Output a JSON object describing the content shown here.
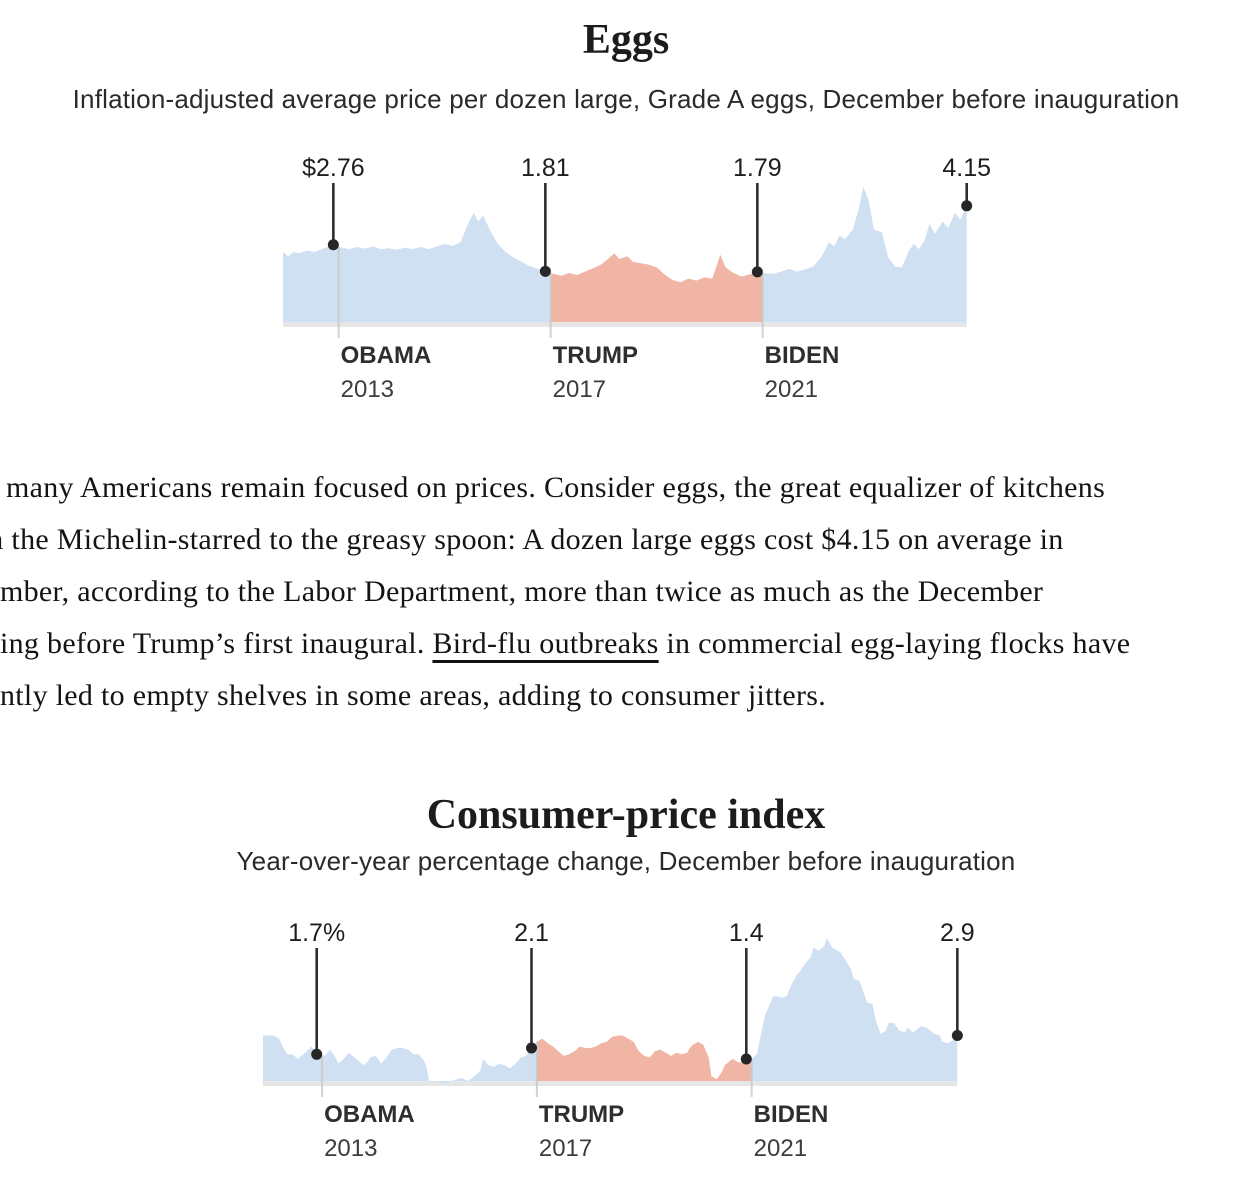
{
  "colors": {
    "area_blue": "#cfe0f2",
    "area_pink": "#f0b5a4",
    "baseline_strip": "#e6e6e6",
    "gridline": "#c9c9c9",
    "callout_line": "#2e2e2e",
    "dot": "#262626"
  },
  "chart_data": [
    {
      "type": "area",
      "title": "Eggs",
      "subtitle": "Inflation-adjusted average price per dozen large, Grade A eggs, December before inauguration",
      "unit": "dollars per dozen",
      "x_domain": [
        2012.0,
        2024.9
      ],
      "ylim": [
        0,
        5.2
      ],
      "grid": false,
      "segments": [
        {
          "president": "OBAMA",
          "color": "#cfe0f2",
          "from": 2012.0,
          "to": 2017.05
        },
        {
          "president": "TRUMP",
          "color": "#f0b5a4",
          "from": 2017.05,
          "to": 2021.05
        },
        {
          "president": "BIDEN",
          "color": "#cfe0f2",
          "from": 2021.05,
          "to": 2024.9
        }
      ],
      "ticks": [
        {
          "president": "OBAMA",
          "year": "2013",
          "x": 2013.05
        },
        {
          "president": "TRUMP",
          "year": "2017",
          "x": 2017.05
        },
        {
          "president": "BIDEN",
          "year": "2021",
          "x": 2021.05
        }
      ],
      "callouts": [
        {
          "label": "$2.76",
          "x": 2012.95,
          "value": 2.76
        },
        {
          "label": "1.81",
          "x": 2016.95,
          "value": 1.81
        },
        {
          "label": "1.79",
          "x": 2020.95,
          "value": 1.79
        },
        {
          "label": "4.15",
          "x": 2024.9,
          "value": 4.15
        }
      ],
      "series": [
        [
          2012.0,
          2.5
        ],
        [
          2012.1,
          2.35
        ],
        [
          2012.2,
          2.5
        ],
        [
          2012.3,
          2.45
        ],
        [
          2012.45,
          2.55
        ],
        [
          2012.6,
          2.5
        ],
        [
          2012.75,
          2.62
        ],
        [
          2012.95,
          2.76
        ],
        [
          2013.1,
          2.66
        ],
        [
          2013.25,
          2.6
        ],
        [
          2013.4,
          2.68
        ],
        [
          2013.55,
          2.62
        ],
        [
          2013.7,
          2.7
        ],
        [
          2013.85,
          2.6
        ],
        [
          2014.0,
          2.64
        ],
        [
          2014.15,
          2.58
        ],
        [
          2014.3,
          2.66
        ],
        [
          2014.45,
          2.6
        ],
        [
          2014.6,
          2.68
        ],
        [
          2014.75,
          2.6
        ],
        [
          2014.9,
          2.7
        ],
        [
          2015.05,
          2.78
        ],
        [
          2015.2,
          2.72
        ],
        [
          2015.35,
          2.85
        ],
        [
          2015.5,
          3.55
        ],
        [
          2015.6,
          3.9
        ],
        [
          2015.68,
          3.6
        ],
        [
          2015.78,
          3.8
        ],
        [
          2015.9,
          3.3
        ],
        [
          2016.05,
          2.8
        ],
        [
          2016.2,
          2.5
        ],
        [
          2016.35,
          2.3
        ],
        [
          2016.5,
          2.15
        ],
        [
          2016.65,
          2.0
        ],
        [
          2016.8,
          1.9
        ],
        [
          2016.95,
          1.81
        ],
        [
          2017.1,
          1.72
        ],
        [
          2017.25,
          1.65
        ],
        [
          2017.4,
          1.75
        ],
        [
          2017.55,
          1.68
        ],
        [
          2017.7,
          1.8
        ],
        [
          2017.85,
          1.92
        ],
        [
          2018.0,
          2.05
        ],
        [
          2018.1,
          2.2
        ],
        [
          2018.25,
          2.45
        ],
        [
          2018.35,
          2.25
        ],
        [
          2018.5,
          2.35
        ],
        [
          2018.6,
          2.15
        ],
        [
          2018.75,
          2.1
        ],
        [
          2018.9,
          2.05
        ],
        [
          2019.05,
          1.95
        ],
        [
          2019.2,
          1.7
        ],
        [
          2019.35,
          1.5
        ],
        [
          2019.5,
          1.42
        ],
        [
          2019.65,
          1.55
        ],
        [
          2019.8,
          1.48
        ],
        [
          2019.95,
          1.6
        ],
        [
          2020.1,
          1.55
        ],
        [
          2020.25,
          2.4
        ],
        [
          2020.35,
          1.95
        ],
        [
          2020.5,
          1.75
        ],
        [
          2020.65,
          1.62
        ],
        [
          2020.8,
          1.7
        ],
        [
          2020.95,
          1.79
        ],
        [
          2021.1,
          1.74
        ],
        [
          2021.25,
          1.72
        ],
        [
          2021.4,
          1.8
        ],
        [
          2021.55,
          1.9
        ],
        [
          2021.7,
          1.8
        ],
        [
          2021.85,
          1.88
        ],
        [
          2022.0,
          1.98
        ],
        [
          2022.15,
          2.3
        ],
        [
          2022.3,
          2.85
        ],
        [
          2022.4,
          2.7
        ],
        [
          2022.5,
          3.1
        ],
        [
          2022.6,
          2.95
        ],
        [
          2022.75,
          3.3
        ],
        [
          2022.87,
          4.1
        ],
        [
          2022.95,
          4.83
        ],
        [
          2023.05,
          4.35
        ],
        [
          2023.15,
          3.3
        ],
        [
          2023.3,
          3.2
        ],
        [
          2023.42,
          2.3
        ],
        [
          2023.55,
          1.98
        ],
        [
          2023.68,
          1.95
        ],
        [
          2023.8,
          2.5
        ],
        [
          2023.9,
          2.8
        ],
        [
          2024.0,
          2.6
        ],
        [
          2024.1,
          2.9
        ],
        [
          2024.2,
          3.5
        ],
        [
          2024.3,
          3.15
        ],
        [
          2024.45,
          3.6
        ],
        [
          2024.55,
          3.35
        ],
        [
          2024.68,
          3.9
        ],
        [
          2024.78,
          3.65
        ],
        [
          2024.9,
          4.15
        ]
      ]
    },
    {
      "type": "area",
      "title": "Consumer-price index",
      "subtitle": "Year-over-year percentage change, December before inauguration",
      "unit": "percent",
      "x_domain": [
        2011.95,
        2024.88
      ],
      "ylim": [
        -0.3,
        9.5
      ],
      "grid": false,
      "segments": [
        {
          "president": "OBAMA",
          "color": "#cfe0f2",
          "from": 2011.95,
          "to": 2017.05
        },
        {
          "president": "TRUMP",
          "color": "#f0b5a4",
          "from": 2017.05,
          "to": 2021.05
        },
        {
          "president": "BIDEN",
          "color": "#cfe0f2",
          "from": 2021.05,
          "to": 2024.88
        }
      ],
      "ticks": [
        {
          "president": "OBAMA",
          "year": "2013",
          "x": 2013.05
        },
        {
          "president": "TRUMP",
          "year": "2017",
          "x": 2017.05
        },
        {
          "president": "BIDEN",
          "year": "2021",
          "x": 2021.05
        }
      ],
      "callouts": [
        {
          "label": "1.7%",
          "x": 2012.95,
          "value": 1.7
        },
        {
          "label": "2.1",
          "x": 2016.95,
          "value": 2.1
        },
        {
          "label": "1.4",
          "x": 2020.95,
          "value": 1.4
        },
        {
          "label": "2.9",
          "x": 2024.88,
          "value": 2.9
        }
      ],
      "series": [
        [
          2011.95,
          2.9
        ],
        [
          2012.05,
          2.9
        ],
        [
          2012.15,
          2.9
        ],
        [
          2012.25,
          2.7
        ],
        [
          2012.3,
          2.3
        ],
        [
          2012.4,
          1.7
        ],
        [
          2012.5,
          1.7
        ],
        [
          2012.6,
          1.4
        ],
        [
          2012.7,
          1.7
        ],
        [
          2012.8,
          2.0
        ],
        [
          2012.85,
          2.2
        ],
        [
          2012.95,
          1.7
        ],
        [
          2013.1,
          1.6
        ],
        [
          2013.2,
          2.0
        ],
        [
          2013.3,
          1.5
        ],
        [
          2013.35,
          1.1
        ],
        [
          2013.45,
          1.4
        ],
        [
          2013.55,
          1.8
        ],
        [
          2013.65,
          1.5
        ],
        [
          2013.75,
          1.2
        ],
        [
          2013.85,
          1.0
        ],
        [
          2013.95,
          1.5
        ],
        [
          2014.05,
          1.6
        ],
        [
          2014.15,
          1.1
        ],
        [
          2014.25,
          1.5
        ],
        [
          2014.35,
          2.0
        ],
        [
          2014.45,
          2.1
        ],
        [
          2014.55,
          2.1
        ],
        [
          2014.65,
          2.0
        ],
        [
          2014.75,
          1.7
        ],
        [
          2014.85,
          1.7
        ],
        [
          2014.95,
          1.3
        ],
        [
          2015.0,
          0.8
        ],
        [
          2015.05,
          -0.1
        ],
        [
          2015.15,
          0.0
        ],
        [
          2015.25,
          -0.1
        ],
        [
          2015.35,
          -0.2
        ],
        [
          2015.45,
          0.0
        ],
        [
          2015.55,
          0.1
        ],
        [
          2015.65,
          0.2
        ],
        [
          2015.75,
          0.0
        ],
        [
          2015.85,
          0.2
        ],
        [
          2015.95,
          0.5
        ],
        [
          2016.0,
          0.7
        ],
        [
          2016.05,
          1.4
        ],
        [
          2016.15,
          1.0
        ],
        [
          2016.25,
          0.9
        ],
        [
          2016.35,
          1.1
        ],
        [
          2016.45,
          1.0
        ],
        [
          2016.55,
          0.8
        ],
        [
          2016.65,
          1.1
        ],
        [
          2016.75,
          1.5
        ],
        [
          2016.85,
          1.6
        ],
        [
          2016.95,
          2.1
        ],
        [
          2017.05,
          2.5
        ],
        [
          2017.15,
          2.7
        ],
        [
          2017.25,
          2.4
        ],
        [
          2017.35,
          2.2
        ],
        [
          2017.45,
          1.9
        ],
        [
          2017.55,
          1.6
        ],
        [
          2017.65,
          1.7
        ],
        [
          2017.75,
          1.9
        ],
        [
          2017.85,
          2.2
        ],
        [
          2017.95,
          2.1
        ],
        [
          2018.05,
          2.1
        ],
        [
          2018.15,
          2.2
        ],
        [
          2018.25,
          2.4
        ],
        [
          2018.35,
          2.5
        ],
        [
          2018.45,
          2.8
        ],
        [
          2018.55,
          2.9
        ],
        [
          2018.65,
          2.9
        ],
        [
          2018.75,
          2.7
        ],
        [
          2018.85,
          2.5
        ],
        [
          2018.9,
          2.2
        ],
        [
          2018.95,
          1.9
        ],
        [
          2019.05,
          1.6
        ],
        [
          2019.15,
          1.5
        ],
        [
          2019.25,
          1.9
        ],
        [
          2019.35,
          2.0
        ],
        [
          2019.45,
          1.8
        ],
        [
          2019.55,
          1.6
        ],
        [
          2019.65,
          1.8
        ],
        [
          2019.75,
          1.7
        ],
        [
          2019.85,
          1.8
        ],
        [
          2019.9,
          2.1
        ],
        [
          2019.95,
          2.3
        ],
        [
          2020.05,
          2.5
        ],
        [
          2020.15,
          2.3
        ],
        [
          2020.25,
          1.5
        ],
        [
          2020.3,
          0.3
        ],
        [
          2020.4,
          0.1
        ],
        [
          2020.5,
          0.6
        ],
        [
          2020.55,
          1.0
        ],
        [
          2020.65,
          1.3
        ],
        [
          2020.7,
          1.4
        ],
        [
          2020.8,
          1.2
        ],
        [
          2020.9,
          1.2
        ],
        [
          2020.95,
          1.4
        ],
        [
          2021.05,
          1.4
        ],
        [
          2021.15,
          1.7
        ],
        [
          2021.2,
          2.6
        ],
        [
          2021.3,
          4.2
        ],
        [
          2021.4,
          5.0
        ],
        [
          2021.45,
          5.4
        ],
        [
          2021.55,
          5.4
        ],
        [
          2021.6,
          5.3
        ],
        [
          2021.7,
          5.4
        ],
        [
          2021.8,
          6.2
        ],
        [
          2021.9,
          6.8
        ],
        [
          2021.95,
          7.0
        ],
        [
          2022.05,
          7.5
        ],
        [
          2022.15,
          7.9
        ],
        [
          2022.2,
          8.5
        ],
        [
          2022.3,
          8.3
        ],
        [
          2022.4,
          8.6
        ],
        [
          2022.45,
          9.1
        ],
        [
          2022.55,
          8.5
        ],
        [
          2022.65,
          8.3
        ],
        [
          2022.7,
          8.2
        ],
        [
          2022.8,
          7.7
        ],
        [
          2022.9,
          7.1
        ],
        [
          2022.95,
          6.5
        ],
        [
          2023.05,
          6.4
        ],
        [
          2023.1,
          6.0
        ],
        [
          2023.2,
          5.0
        ],
        [
          2023.3,
          4.9
        ],
        [
          2023.35,
          4.0
        ],
        [
          2023.45,
          3.0
        ],
        [
          2023.55,
          3.2
        ],
        [
          2023.6,
          3.7
        ],
        [
          2023.7,
          3.7
        ],
        [
          2023.8,
          3.2
        ],
        [
          2023.9,
          3.1
        ],
        [
          2023.95,
          3.4
        ],
        [
          2024.05,
          3.1
        ],
        [
          2024.1,
          3.2
        ],
        [
          2024.2,
          3.5
        ],
        [
          2024.3,
          3.4
        ],
        [
          2024.35,
          3.3
        ],
        [
          2024.45,
          3.0
        ],
        [
          2024.55,
          2.9
        ],
        [
          2024.6,
          2.5
        ],
        [
          2024.7,
          2.4
        ],
        [
          2024.8,
          2.6
        ],
        [
          2024.85,
          2.7
        ],
        [
          2024.88,
          2.9
        ]
      ]
    }
  ],
  "paragraph": {
    "lines": [
      {
        "text": "many Americans remain focused on prices. Consider eggs, the great equalizer of kitchens"
      },
      {
        "text": "m the Michelin-starred to the greasy spoon: A dozen large eggs cost $4.15 on average in"
      },
      {
        "text": "mber, according to the Labor Department, more than twice as much as the December"
      },
      {
        "pre": "ing before Trump’s first inaugural. ",
        "link": "Bird-flu outbreaks",
        "post": " in commercial egg-laying flocks have"
      },
      {
        "text": "ntly led to empty shelves in some areas, adding to consumer jitters."
      }
    ]
  }
}
